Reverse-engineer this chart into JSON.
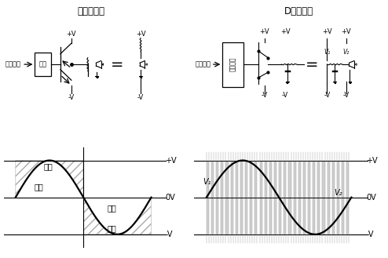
{
  "title_left": "模拟放大器",
  "title_right": "D类放大器",
  "bg_color": "#ffffff",
  "signal_left": "模拟信号",
  "signal_right": "数字信号",
  "box_left": "放大",
  "box_right": "驱动电路",
  "left_wave_labels": {
    "plus_v": "+V",
    "zero_v": "0V",
    "minus_v": "-V",
    "loss_top": "损失",
    "output_top": "输出",
    "output_bot": "输出",
    "loss_bot": "损失"
  },
  "right_wave_labels": {
    "plus_v": "+V",
    "zero_v": "0V",
    "minus_v": "-V",
    "v1": "V",
    "v1_sub": "1",
    "v2": "V",
    "v2_sub": "2"
  }
}
